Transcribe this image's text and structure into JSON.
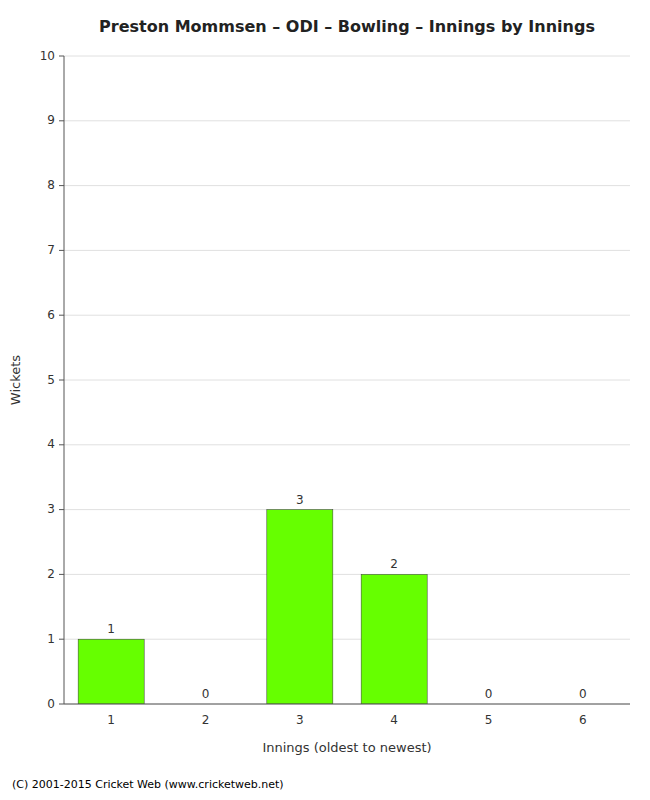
{
  "chart_data": {
    "type": "bar",
    "title": "Preston Mommsen – ODI – Bowling – Innings by Innings",
    "xlabel": "Innings (oldest to newest)",
    "ylabel": "Wickets",
    "categories": [
      "1",
      "2",
      "3",
      "4",
      "5",
      "6"
    ],
    "values": [
      1,
      0,
      3,
      2,
      0,
      0
    ],
    "color": "#66ff00",
    "ylim": [
      0,
      10
    ],
    "yticks": [
      0,
      1,
      2,
      3,
      4,
      5,
      6,
      7,
      8,
      9,
      10
    ],
    "grid": true,
    "data_labels": true,
    "annotations": [
      "(C) 2001-2015 Cricket Web (www.cricketweb.net)"
    ]
  }
}
